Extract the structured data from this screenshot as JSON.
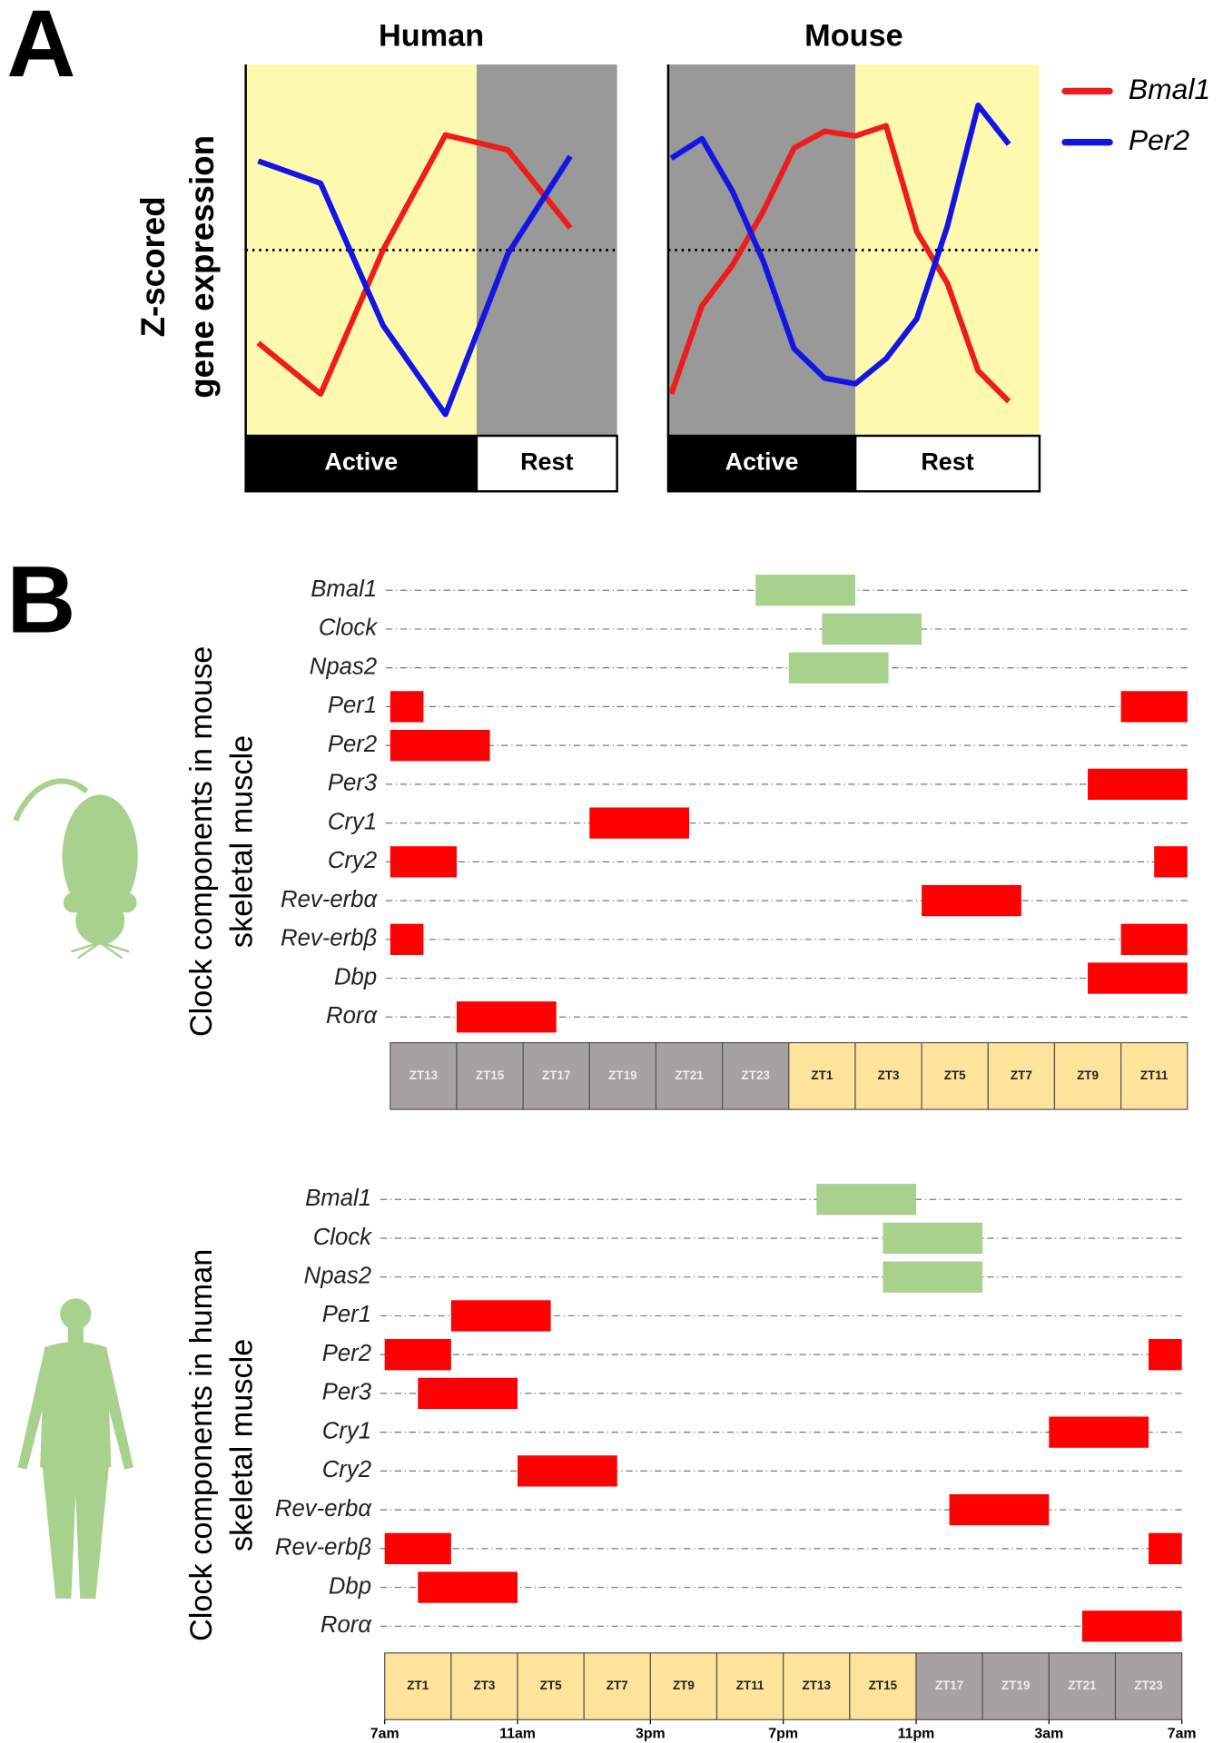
{
  "chart_data": [
    {
      "type": "line",
      "panel": "A",
      "title": "Human",
      "ylabel": [
        "Z-scored",
        "gene expression"
      ],
      "x": [
        0,
        1,
        2,
        3,
        4,
        5
      ],
      "xlim": [
        -0.2,
        5.75
      ],
      "ylim": [
        -2,
        2
      ],
      "zero_line": true,
      "phases": [
        {
          "label": "Active",
          "start": -0.2,
          "end": 3.5,
          "shade": "#fdfaaf",
          "bar": "#000000"
        },
        {
          "label": "Rest",
          "start": 3.5,
          "end": 5.75,
          "shade": "#999999",
          "bar": "#ffffff"
        }
      ],
      "series": [
        {
          "color": "#ee1c1c",
          "values": [
            -1.0,
            -1.55,
            0.0,
            1.24,
            1.08,
            0.24
          ]
        },
        {
          "color": "#1414e6",
          "values": [
            0.96,
            0.72,
            -0.81,
            -1.77,
            -0.04,
            1.01
          ]
        }
      ]
    },
    {
      "type": "line",
      "title": "Mouse",
      "x": [
        0,
        1,
        2,
        3,
        4,
        5,
        6,
        7,
        8,
        9,
        10,
        11
      ],
      "xlim": [
        -0.1,
        12
      ],
      "ylim": [
        -2,
        2
      ],
      "zero_line": true,
      "legend": true,
      "phases": [
        {
          "label": "Active",
          "start": -0.1,
          "end": 6,
          "shade": "#999999",
          "bar": "#000000"
        },
        {
          "label": "Rest",
          "start": 6,
          "end": 12,
          "shade": "#fdfaaf",
          "bar": "#ffffff"
        }
      ],
      "series": [
        {
          "name": "Bmal1",
          "color": "#ee1c1c",
          "values": [
            -1.55,
            -0.6,
            -0.16,
            0.42,
            1.1,
            1.28,
            1.23,
            1.34,
            0.2,
            -0.36,
            -1.3,
            -1.63
          ]
        },
        {
          "name": "Per2",
          "color": "#1414e6",
          "values": [
            0.99,
            1.2,
            0.63,
            -0.12,
            -1.06,
            -1.38,
            -1.44,
            -1.17,
            -0.74,
            0.26,
            1.56,
            1.14
          ]
        }
      ]
    },
    {
      "type": "timeline",
      "panel": "B",
      "ylabel": [
        "Clock components in mouse",
        "skeletal muscle"
      ],
      "xlim": [
        0,
        24
      ],
      "cells": [
        {
          "label": "ZT13",
          "color": "#a7a1a4"
        },
        {
          "label": "ZT15",
          "color": "#a7a1a4"
        },
        {
          "label": "ZT17",
          "color": "#a7a1a4"
        },
        {
          "label": "ZT19",
          "color": "#a7a1a4"
        },
        {
          "label": "ZT21",
          "color": "#a7a1a4"
        },
        {
          "label": "ZT23",
          "color": "#a7a1a4"
        },
        {
          "label": "ZT1",
          "color": "#fde49a"
        },
        {
          "label": "ZT3",
          "color": "#fde49a"
        },
        {
          "label": "ZT5",
          "color": "#fde49a"
        },
        {
          "label": "ZT7",
          "color": "#fde49a"
        },
        {
          "label": "ZT9",
          "color": "#fde49a"
        },
        {
          "label": "ZT11",
          "color": "#fde49a"
        }
      ],
      "rows": [
        {
          "name": "Bmal1",
          "color": "#a9d18e",
          "segments": [
            [
              11,
              14
            ]
          ]
        },
        {
          "name": "Clock",
          "color": "#a9d18e",
          "segments": [
            [
              13,
              16
            ]
          ]
        },
        {
          "name": "Npas2",
          "color": "#a9d18e",
          "segments": [
            [
              12,
              15
            ]
          ]
        },
        {
          "name": "Per1",
          "color": "#ff0000",
          "segments": [
            [
              0,
              1
            ],
            [
              22,
              24
            ]
          ]
        },
        {
          "name": "Per2",
          "color": "#ff0000",
          "segments": [
            [
              0,
              3
            ]
          ]
        },
        {
          "name": "Per3",
          "color": "#ff0000",
          "segments": [
            [
              21,
              24
            ]
          ]
        },
        {
          "name": "Cry1",
          "color": "#ff0000",
          "segments": [
            [
              6,
              9
            ]
          ]
        },
        {
          "name": "Cry2",
          "color": "#ff0000",
          "segments": [
            [
              0,
              2
            ],
            [
              23,
              24
            ]
          ]
        },
        {
          "name": "Rev-erbα",
          "color": "#ff0000",
          "segments": [
            [
              16,
              19
            ]
          ]
        },
        {
          "name": "Rev-erbβ",
          "color": "#ff0000",
          "segments": [
            [
              0,
              1
            ],
            [
              22,
              24
            ]
          ]
        },
        {
          "name": "Dbp",
          "color": "#ff0000",
          "segments": [
            [
              21,
              24
            ]
          ]
        },
        {
          "name": "Rorα",
          "color": "#ff0000",
          "segments": [
            [
              2,
              5
            ]
          ]
        }
      ]
    },
    {
      "type": "timeline",
      "ylabel": [
        "Clock components in human",
        "skeletal muscle"
      ],
      "xlim": [
        0,
        24
      ],
      "cells": [
        {
          "label": "ZT1",
          "color": "#fde49a"
        },
        {
          "label": "ZT3",
          "color": "#fde49a"
        },
        {
          "label": "ZT5",
          "color": "#fde49a"
        },
        {
          "label": "ZT7",
          "color": "#fde49a"
        },
        {
          "label": "ZT9",
          "color": "#fde49a"
        },
        {
          "label": "ZT11",
          "color": "#fde49a"
        },
        {
          "label": "ZT13",
          "color": "#fde49a"
        },
        {
          "label": "ZT15",
          "color": "#fde49a"
        },
        {
          "label": "ZT17",
          "color": "#a7a1a4"
        },
        {
          "label": "ZT19",
          "color": "#a7a1a4"
        },
        {
          "label": "ZT21",
          "color": "#a7a1a4"
        },
        {
          "label": "ZT23",
          "color": "#a7a1a4"
        }
      ],
      "xticks": [
        {
          "value": 0,
          "label": "7am"
        },
        {
          "value": 4,
          "label": "11am"
        },
        {
          "value": 8,
          "label": "3pm"
        },
        {
          "value": 12,
          "label": "7pm"
        },
        {
          "value": 16,
          "label": "11pm"
        },
        {
          "value": 20,
          "label": "3am"
        },
        {
          "value": 24,
          "label": "7am"
        }
      ],
      "rows": [
        {
          "name": "Bmal1",
          "color": "#a9d18e",
          "segments": [
            [
              13,
              16
            ]
          ]
        },
        {
          "name": "Clock",
          "color": "#a9d18e",
          "segments": [
            [
              15,
              18
            ]
          ]
        },
        {
          "name": "Npas2",
          "color": "#a9d18e",
          "segments": [
            [
              15,
              18
            ]
          ]
        },
        {
          "name": "Per1",
          "color": "#ff0000",
          "segments": [
            [
              2,
              5
            ]
          ]
        },
        {
          "name": "Per2",
          "color": "#ff0000",
          "segments": [
            [
              0,
              2
            ],
            [
              23,
              24
            ]
          ]
        },
        {
          "name": "Per3",
          "color": "#ff0000",
          "segments": [
            [
              1,
              4
            ]
          ]
        },
        {
          "name": "Cry1",
          "color": "#ff0000",
          "segments": [
            [
              20,
              23
            ]
          ]
        },
        {
          "name": "Cry2",
          "color": "#ff0000",
          "segments": [
            [
              4,
              7
            ]
          ]
        },
        {
          "name": "Rev-erbα",
          "color": "#ff0000",
          "segments": [
            [
              17,
              20
            ]
          ]
        },
        {
          "name": "Rev-erbβ",
          "color": "#ff0000",
          "segments": [
            [
              0,
              2
            ],
            [
              23,
              24
            ]
          ]
        },
        {
          "name": "Dbp",
          "color": "#ff0000",
          "segments": [
            [
              1,
              4
            ]
          ]
        },
        {
          "name": "Rorα",
          "color": "#ff0000",
          "segments": [
            [
              21,
              24
            ]
          ]
        }
      ]
    }
  ]
}
